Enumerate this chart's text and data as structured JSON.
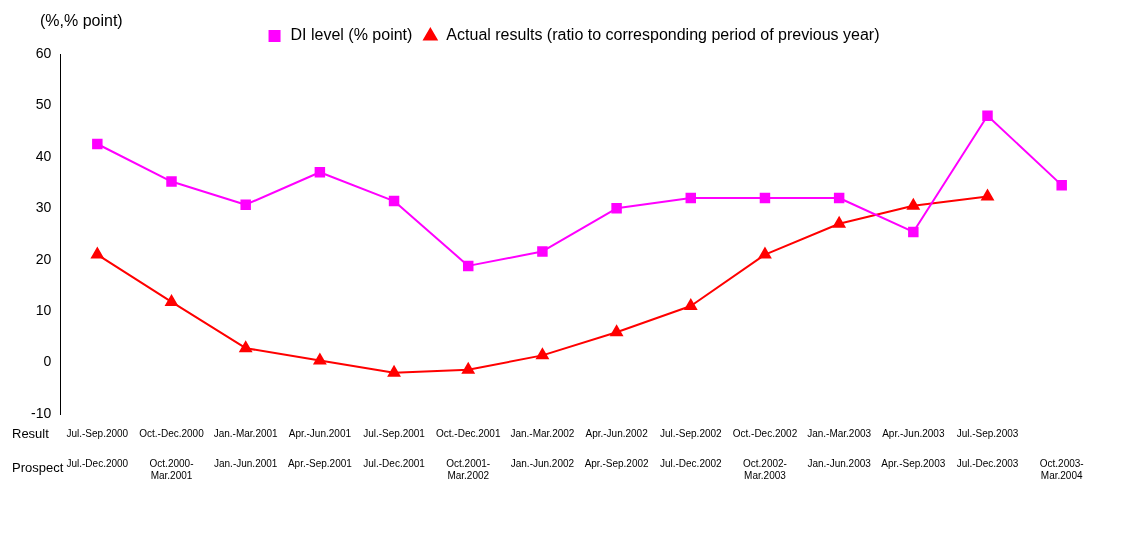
{
  "chart_data": {
    "type": "line",
    "ylabel": "(%,% point)",
    "categories": [
      "Jul.-Dec.2000",
      "Oct.2000-Mar.2001",
      "Jan.-Jun.2001",
      "Apr.-Sep.2001",
      "Jul.-Dec.2001",
      "Oct.2001-Mar.2002",
      "Jan.-Jun.2002",
      "Apr.-Sep.2002",
      "Jul.-Dec.2002",
      "Oct.2002-Mar.2003",
      "Jan.-Jun.2003",
      "Apr.-Sep.2003",
      "Jul.-Dec.2003",
      "Oct.2003-Mar.2004"
    ],
    "series": [
      {
        "name": "DI level (% point)",
        "color": "#ff00ff",
        "marker": "square",
        "values": [
          42.5,
          35.2,
          30.7,
          37,
          31.4,
          18.8,
          21.6,
          30,
          32,
          32,
          32,
          25.4,
          48,
          34.5
        ]
      },
      {
        "name": "Actual results (ratio to corresponding period of previous year)",
        "color": "#ff0000",
        "marker": "triangle",
        "values": [
          21,
          11.8,
          2.8,
          0.4,
          -2,
          -1.4,
          1.4,
          5.9,
          11,
          21,
          27,
          30.5,
          32.3,
          null
        ]
      }
    ],
    "annotations": [
      "Result",
      "Prospect",
      "Jul.-Sep.2000",
      "Oct.-Dec.2000",
      "Jan.-Mar.2001",
      "Apr.-Jun.2001",
      "Jul.-Sep.2001",
      "Oct.-Dec.2001",
      "Jan.-Mar.2002",
      "Apr.-Jun.2002",
      "Jul.-Sep.2002",
      "Oct.-Dec.2002",
      "Jan.-Mar.2003",
      "Apr.-Jun.2003",
      "Jul.-Sep.2003"
    ],
    "ylim": [
      -10,
      60
    ],
    "yticks": [
      -10,
      0,
      10,
      20,
      30,
      40,
      50,
      60
    ],
    "grid": false,
    "legend": "top",
    "line_style": "solid"
  }
}
